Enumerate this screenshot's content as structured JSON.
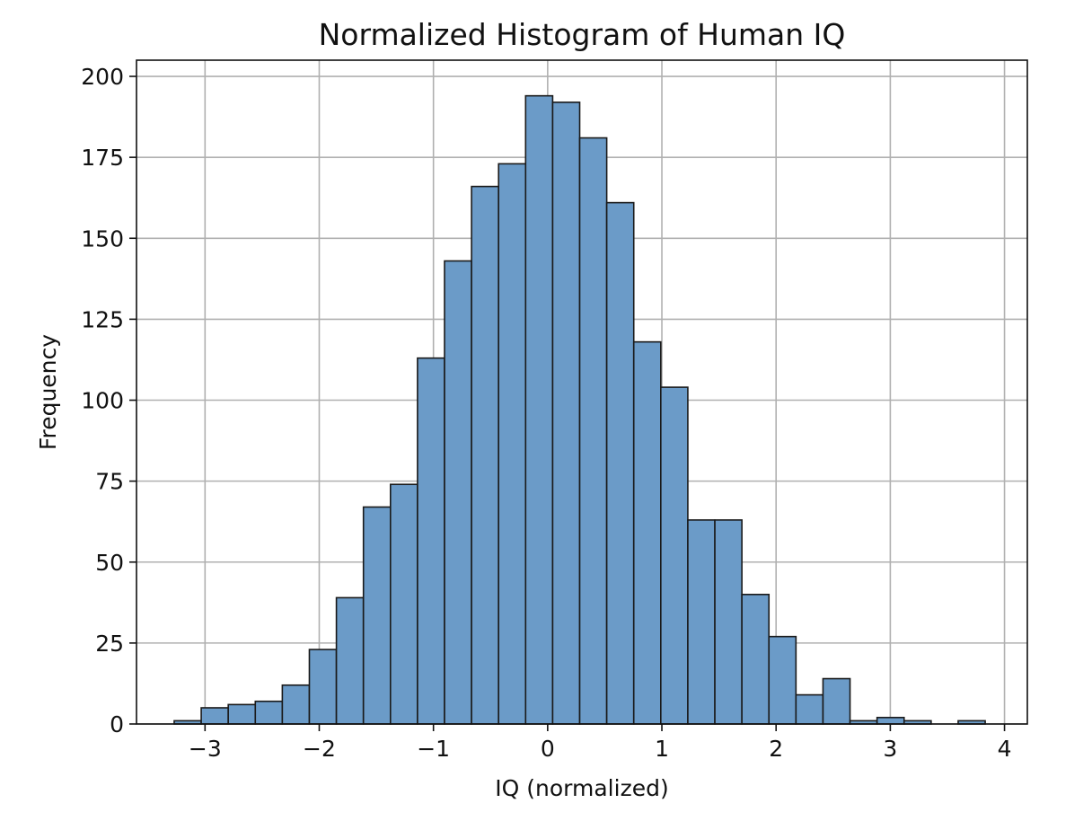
{
  "chart_data": {
    "type": "bar",
    "title": "Normalized Histogram of Human IQ",
    "xlabel": "IQ (normalized)",
    "ylabel": "Frequency",
    "xlim": [
      -3.6,
      4.2
    ],
    "ylim": [
      0,
      205
    ],
    "xticks": [
      -3,
      -2,
      -1,
      0,
      1,
      2,
      3,
      4
    ],
    "yticks": [
      0,
      25,
      50,
      75,
      100,
      125,
      150,
      175,
      200
    ],
    "grid": true,
    "bin_start": -3.27,
    "bin_width": 0.2367,
    "values": [
      1,
      5,
      6,
      7,
      12,
      23,
      39,
      67,
      74,
      113,
      143,
      166,
      173,
      194,
      192,
      181,
      161,
      118,
      104,
      63,
      63,
      40,
      27,
      9,
      14,
      1,
      2,
      1,
      0,
      1
    ],
    "bar_color": "#6b9bc8",
    "edge_color": "#1a1a1a",
    "background": "#ffffff",
    "grid_color": "#b0b0b0"
  }
}
